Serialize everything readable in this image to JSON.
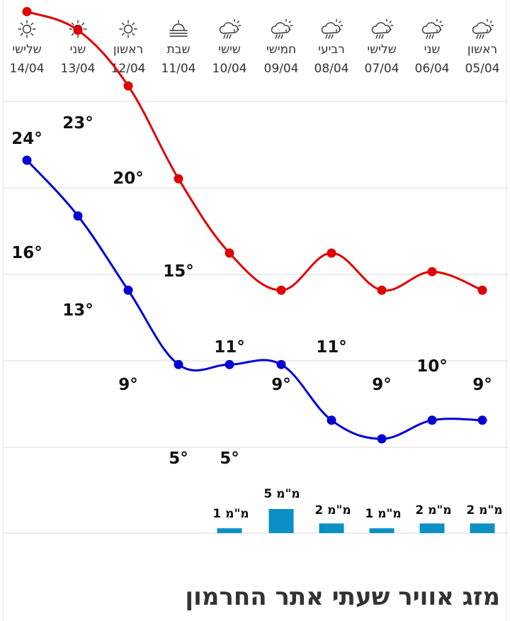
{
  "days": [
    {
      "name": "ראשון",
      "date": "05/04",
      "icon": "rain-sun-icon"
    },
    {
      "name": "שני",
      "date": "06/04",
      "icon": "rain-sun-icon"
    },
    {
      "name": "שלישי",
      "date": "07/04",
      "icon": "rain-sun-icon"
    },
    {
      "name": "רביעי",
      "date": "08/04",
      "icon": "rain-sun-icon"
    },
    {
      "name": "חמישי",
      "date": "09/04",
      "icon": "rain-sun-icon"
    },
    {
      "name": "שישי",
      "date": "10/04",
      "icon": "rain-sun-icon"
    },
    {
      "name": "שבת",
      "date": "11/04",
      "icon": "sun-fog-icon"
    },
    {
      "name": "ראשון",
      "date": "12/04",
      "icon": "sun-icon"
    },
    {
      "name": "שני",
      "date": "13/04",
      "icon": "sun-icon"
    },
    {
      "name": "שלישי",
      "date": "14/04",
      "icon": "sun-icon"
    }
  ],
  "chart_data": {
    "type": "line",
    "x": [
      "05/04",
      "06/04",
      "07/04",
      "08/04",
      "09/04",
      "10/04",
      "11/04",
      "12/04",
      "13/04",
      "14/04"
    ],
    "x_direction": "right-to-left",
    "series": [
      {
        "kind": "line",
        "color": "#e00000",
        "values": [
          9,
          10,
          9,
          11,
          9,
          11,
          15,
          20,
          23,
          24
        ],
        "labels": [
          "9°",
          "10°",
          "9°",
          "11°",
          "9°",
          "11°",
          "15°",
          "20°",
          "23°",
          "24°"
        ]
      },
      {
        "kind": "line",
        "color": "#0000d4",
        "values": [
          2,
          2,
          1,
          2,
          5,
          5,
          5,
          9,
          13,
          16
        ],
        "labels": [
          "",
          "",
          "",
          "",
          "",
          "5°",
          "5°",
          "9°",
          "13°",
          "16°"
        ]
      },
      {
        "kind": "bar",
        "color": "#0a90c4",
        "values": [
          2,
          2,
          1,
          2,
          5,
          1,
          null,
          null,
          null,
          null
        ],
        "labels": [
          "2 מ\"מ",
          "2 מ\"מ",
          "1 מ\"מ",
          "2 מ\"מ",
          "5 מ\"מ",
          "1 מ\"מ",
          "",
          "",
          "",
          ""
        ]
      }
    ],
    "grid": true,
    "legend": "none"
  },
  "footer": {
    "title": "מזג אוויר שעתי אתר החרמון"
  }
}
